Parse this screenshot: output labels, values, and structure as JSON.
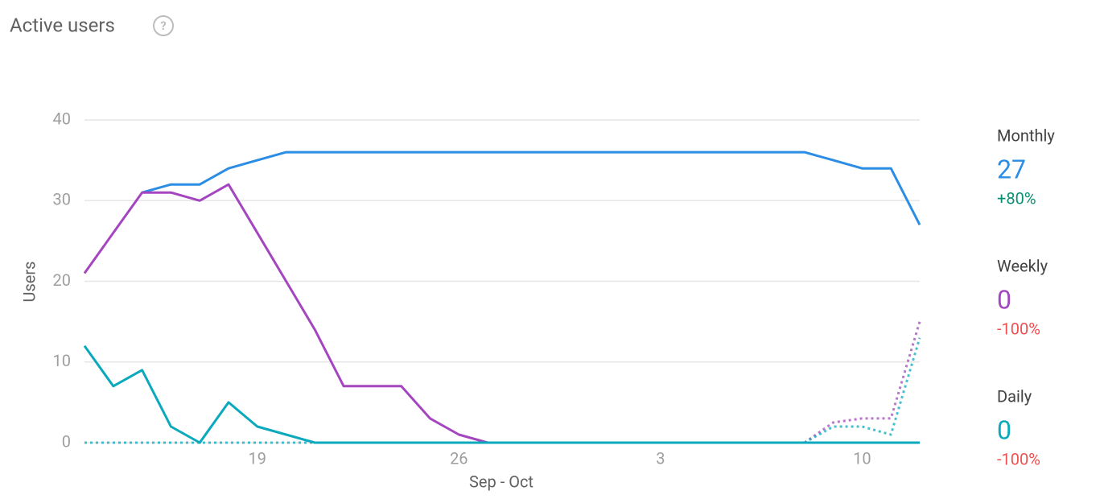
{
  "chart_data": {
    "type": "line",
    "title": "Active users",
    "help_icon": "?",
    "x_label": "Sep - Oct",
    "y_label": "Users",
    "categories": [
      null,
      null,
      null,
      null,
      null,
      null,
      "19",
      null,
      null,
      null,
      null,
      null,
      null,
      "26",
      null,
      null,
      null,
      null,
      null,
      null,
      "3",
      null,
      null,
      null,
      null,
      null,
      null,
      "10",
      null,
      null
    ],
    "ylim": [
      0,
      40
    ],
    "yticks": [
      0,
      10,
      20,
      30,
      40
    ],
    "grid": true,
    "series": [
      {
        "name": "Monthly",
        "color": "#2b8de3",
        "summary_value": 27,
        "summary_change": "+80%",
        "change_color": "#0b8f73",
        "values": [
          null,
          null,
          31,
          32,
          32,
          34,
          35,
          36,
          36,
          36,
          36,
          36,
          36,
          36,
          36,
          36,
          36,
          36,
          36,
          36,
          36,
          36,
          36,
          36,
          36,
          36,
          35,
          34,
          34,
          27
        ],
        "dotted_values": [
          null,
          null,
          null,
          null,
          null,
          null,
          null,
          null,
          null,
          null,
          null,
          null,
          null,
          null,
          null,
          null,
          null,
          null,
          null,
          null,
          null,
          null,
          null,
          null,
          null,
          null,
          null,
          null,
          null,
          null
        ]
      },
      {
        "name": "Weekly",
        "color": "#a446bf",
        "summary_value": 0,
        "summary_change": "-100%",
        "change_color": "#ef4f4f",
        "values": [
          21,
          26,
          31,
          31,
          30,
          32,
          26,
          20,
          14,
          7,
          7,
          7,
          3,
          1,
          0,
          0,
          0,
          0,
          0,
          0,
          0,
          0,
          0,
          0,
          0,
          0,
          0,
          0,
          0,
          0
        ],
        "dotted_values": [
          null,
          null,
          null,
          null,
          null,
          null,
          null,
          null,
          null,
          null,
          null,
          null,
          null,
          null,
          null,
          null,
          null,
          null,
          null,
          null,
          null,
          null,
          null,
          null,
          null,
          0,
          2.5,
          3,
          3,
          15
        ]
      },
      {
        "name": "Daily",
        "color": "#0ba9bc",
        "summary_value": 0,
        "summary_change": "-100%",
        "change_color": "#ef4f4f",
        "values": [
          12,
          7,
          9,
          2,
          0,
          5,
          2,
          1,
          0,
          0,
          0,
          0,
          0,
          0,
          0,
          0,
          0,
          0,
          0,
          0,
          0,
          0,
          0,
          0,
          0,
          0,
          0,
          0,
          0,
          0
        ],
        "dotted_values": [
          0,
          0,
          0,
          0,
          0,
          0,
          0,
          0,
          0,
          null,
          null,
          null,
          null,
          null,
          null,
          null,
          null,
          null,
          null,
          null,
          null,
          null,
          null,
          null,
          null,
          0,
          2,
          2,
          1,
          13
        ]
      }
    ]
  }
}
